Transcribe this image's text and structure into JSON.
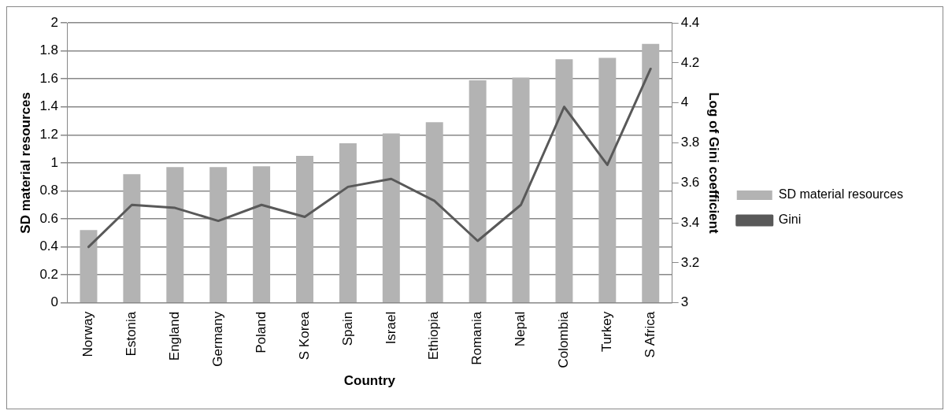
{
  "chart_data": {
    "type": "bar",
    "xlabel": "Country",
    "ylabel": "SD material resources",
    "y2label": "Log of Gini coefficient",
    "categories": [
      "Norway",
      "Estonia",
      "England",
      "Germany",
      "Poland",
      "S Korea",
      "Spain",
      "Israel",
      "Ethiopia",
      "Romania",
      "Nepal",
      "Colombia",
      "Turkey",
      "S Africa"
    ],
    "series": [
      {
        "name": "SD material resources",
        "color": "#b3b3b3",
        "values": [
          0.52,
          0.92,
          0.97,
          0.97,
          0.975,
          1.05,
          1.14,
          1.21,
          1.29,
          1.59,
          1.61,
          1.74,
          1.75,
          1.85
        ]
      },
      {
        "name": "Gini",
        "type": "line",
        "axis": "y2",
        "color": "#595959",
        "values": [
          3.28,
          3.49,
          3.475,
          3.41,
          3.49,
          3.43,
          3.58,
          3.62,
          3.51,
          3.31,
          3.49,
          3.98,
          3.69,
          4.17
        ]
      }
    ],
    "ylim": [
      0,
      2
    ],
    "yticks": [
      0,
      0.2,
      0.4,
      0.6,
      0.8,
      1,
      1.2,
      1.4,
      1.6,
      1.8,
      2
    ],
    "y2lim": [
      3,
      4.4
    ],
    "y2ticks": [
      3,
      3.2,
      3.4,
      3.6,
      3.8,
      4,
      4.2,
      4.4
    ],
    "grid": "y",
    "legend": "right",
    "marker": "none"
  }
}
